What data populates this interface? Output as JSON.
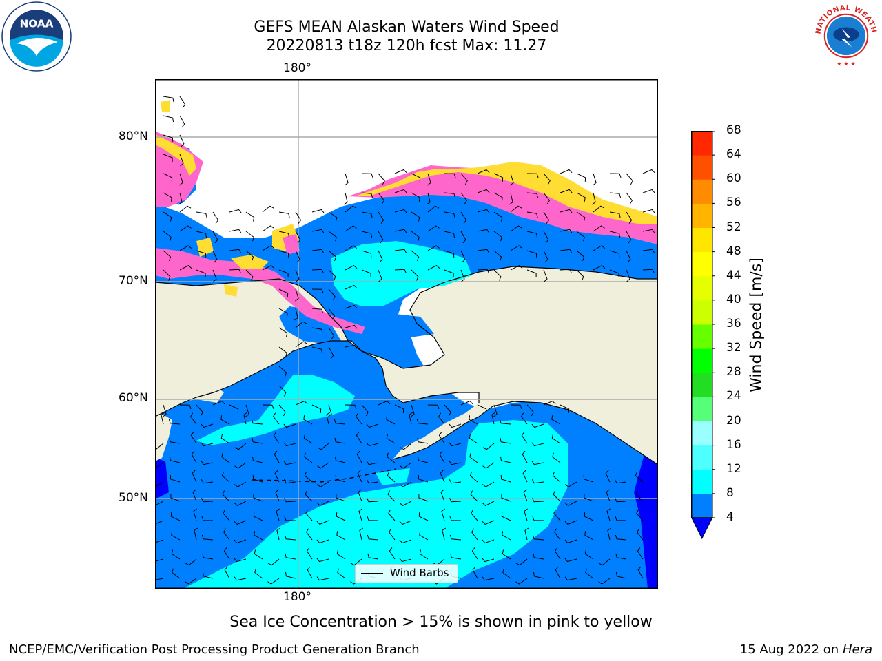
{
  "header": {
    "title_line1": "GEFS MEAN Alaskan Waters Wind Speed",
    "title_line2": "20220813 t18z 120h fcst   Max: 11.27"
  },
  "logos": {
    "left_text": "NOAA",
    "right_text": "NATIONAL WEATHER SERVICE"
  },
  "map": {
    "lon_label_top": "180°",
    "lon_label_bottom": "180°",
    "lat_labels": [
      "80°N",
      "70°N",
      "60°N",
      "50°N"
    ],
    "legend_label": "Wind Barbs",
    "colors": {
      "land": "#efefdb",
      "ocean_lowest": "#0000ff",
      "wind_4_8": "#0080ff",
      "wind_8_12": "#00ffff",
      "ice_low": "#ff66cc",
      "ice_high": "#ffdd33"
    }
  },
  "colorbar": {
    "title": "Wind Speed [m/s]",
    "levels": [
      "4",
      "8",
      "12",
      "16",
      "20",
      "24",
      "28",
      "32",
      "36",
      "40",
      "44",
      "48",
      "52",
      "56",
      "60",
      "64",
      "68"
    ],
    "colors": [
      "#0080ff",
      "#00ffff",
      "#4dffff",
      "#99ffff",
      "#55ff77",
      "#22dd22",
      "#00ff00",
      "#66ff00",
      "#ccff00",
      "#e6ff00",
      "#ffff00",
      "#ffe600",
      "#ffb400",
      "#ff8c00",
      "#ff5000",
      "#ff2800",
      "#ff0000"
    ]
  },
  "footer": {
    "note": "Sea Ice Concentration > 15% is shown in pink to yellow",
    "left": "NCEP/EMC/Verification Post Processing Product Generation Branch",
    "right_date": "15 Aug 2022 on",
    "right_host": "Hera"
  }
}
